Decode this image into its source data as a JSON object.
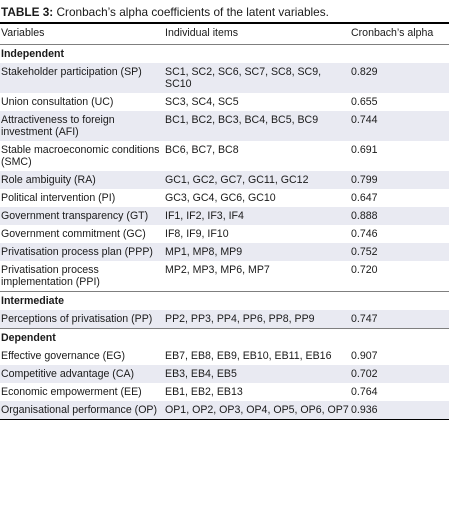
{
  "caption": {
    "label": "TABLE 3:",
    "text": " Cronbach’s alpha coefficients of the latent variables."
  },
  "headers": [
    "Variables",
    "Individual items",
    "Cronbach’s alpha"
  ],
  "sections": [
    {
      "title": "Independent",
      "rows": [
        {
          "variable": "Stakeholder participation (SP)",
          "items": "SC1, SC2, SC6, SC7, SC8, SC9, SC10",
          "alpha": "0.829"
        },
        {
          "variable": "Union consultation (UC)",
          "items": "SC3, SC4, SC5",
          "alpha": "0.655"
        },
        {
          "variable": "Attractiveness to foreign investment (AFI)",
          "items": "BC1, BC2, BC3, BC4, BC5, BC9",
          "alpha": "0.744"
        },
        {
          "variable": "Stable macroeconomic conditions (SMC)",
          "items": "BC6, BC7, BC8",
          "alpha": "0.691"
        },
        {
          "variable": "Role ambiguity (RA)",
          "items": "GC1, GC2, GC7, GC11, GC12",
          "alpha": "0.799"
        },
        {
          "variable": "Political intervention (PI)",
          "items": "GC3, GC4, GC6, GC10",
          "alpha": "0.647"
        },
        {
          "variable": "Government transparency (GT)",
          "items": "IF1, IF2, IF3, IF4",
          "alpha": "0.888"
        },
        {
          "variable": "Government commitment (GC)",
          "items": "IF8, IF9, IF10",
          "alpha": "0.746"
        },
        {
          "variable": "Privatisation process plan (PPP)",
          "items": "MP1, MP8, MP9",
          "alpha": "0.752"
        },
        {
          "variable": "Privatisation process implementation (PPI)",
          "items": "MP2, MP3, MP6, MP7",
          "alpha": "0.720"
        }
      ]
    },
    {
      "title": "Intermediate",
      "rows": [
        {
          "variable": "Perceptions of privatisation (PP)",
          "items": "PP2, PP3, PP4, PP6, PP8, PP9",
          "alpha": "0.747"
        }
      ]
    },
    {
      "title": "Dependent",
      "rows": [
        {
          "variable": "Effective governance (EG)",
          "items": "EB7, EB8, EB9, EB10, EB11, EB16",
          "alpha": "0.907"
        },
        {
          "variable": "Competitive advantage (CA)",
          "items": "EB3, EB4, EB5",
          "alpha": "0.702"
        },
        {
          "variable": "Economic empowerment (EE)",
          "items": "EB1, EB2, EB13",
          "alpha": "0.764"
        },
        {
          "variable": "Organisational performance (OP)",
          "items": "OP1, OP2, OP3, OP4, OP5, OP6, OP7",
          "alpha": "0.936"
        }
      ]
    }
  ]
}
